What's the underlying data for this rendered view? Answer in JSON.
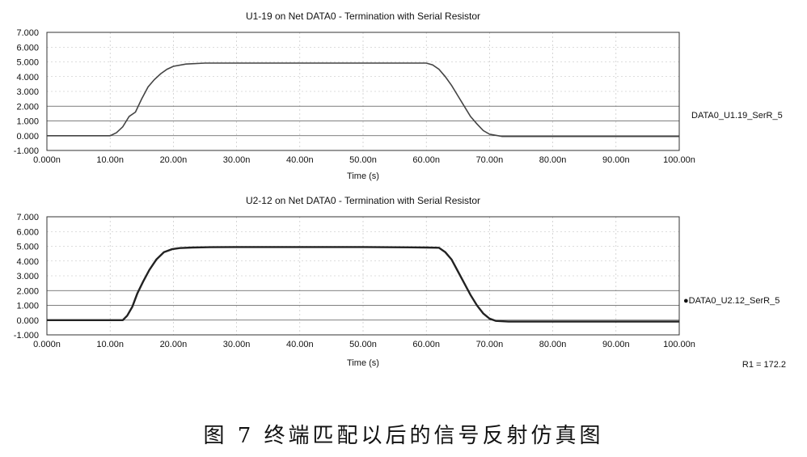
{
  "chart_data": [
    {
      "type": "line",
      "title": "U1-19 on Net DATA0 - Termination with Serial Resistor",
      "xlabel": "Time (s)",
      "ylabel": "",
      "xlim": [
        0,
        100
      ],
      "ylim": [
        -1,
        7
      ],
      "x_ticks": [
        "0.000n",
        "10.00n",
        "20.00n",
        "30.00n",
        "40.00n",
        "50.00n",
        "60.00n",
        "70.00n",
        "80.00n",
        "90.00n",
        "100.00n"
      ],
      "y_ticks": [
        "7.000",
        "6.000",
        "5.000",
        "4.000",
        "3.000",
        "2.000",
        "1.000",
        "0.000",
        "-1.000"
      ],
      "legend_position": "right",
      "grid": true,
      "series": [
        {
          "name": "DATA0_U1.19_SerR_5",
          "x": [
            0,
            10,
            11,
            12,
            13,
            14,
            15,
            16,
            17,
            18,
            19,
            20,
            22,
            25,
            30,
            40,
            50,
            60,
            61,
            62,
            63,
            64,
            65,
            66,
            67,
            68,
            69,
            70,
            72,
            75,
            80,
            90,
            100
          ],
          "y": [
            0,
            0,
            0.2,
            0.6,
            1.3,
            1.6,
            2.5,
            3.3,
            3.8,
            4.2,
            4.5,
            4.7,
            4.85,
            4.92,
            4.92,
            4.92,
            4.92,
            4.92,
            4.8,
            4.5,
            4.0,
            3.4,
            2.7,
            2.0,
            1.3,
            0.8,
            0.35,
            0.1,
            -0.05,
            -0.05,
            -0.05,
            -0.05,
            -0.05
          ]
        }
      ]
    },
    {
      "type": "line",
      "title": "U2-12 on Net DATA0 - Termination with Serial Resistor",
      "xlabel": "Time (s)",
      "ylabel": "",
      "xlim": [
        0,
        100
      ],
      "ylim": [
        -1,
        7
      ],
      "x_ticks": [
        "0.000n",
        "10.00n",
        "20.00n",
        "30.00n",
        "40.00n",
        "50.00n",
        "60.00n",
        "70.00n",
        "80.00n",
        "90.00n",
        "100.00n"
      ],
      "y_ticks": [
        "7.000",
        "6.000",
        "5.000",
        "4.000",
        "3.000",
        "2.000",
        "1.000",
        "0.000",
        "-1.000"
      ],
      "legend_position": "right",
      "grid": true,
      "series": [
        {
          "name": "●DATA0_U2.12_SerR_5",
          "x": [
            0,
            12,
            12.7,
            13.5,
            14.3,
            15.2,
            16.2,
            17.3,
            18.5,
            19.8,
            21,
            23,
            26,
            30,
            40,
            50,
            60,
            62,
            63,
            64,
            65,
            66,
            67,
            68,
            69,
            70,
            71,
            73,
            76,
            80,
            90,
            100
          ],
          "y": [
            0,
            0,
            0.3,
            0.9,
            1.8,
            2.6,
            3.4,
            4.1,
            4.6,
            4.8,
            4.88,
            4.92,
            4.94,
            4.95,
            4.95,
            4.95,
            4.92,
            4.9,
            4.6,
            4.1,
            3.3,
            2.5,
            1.7,
            1.0,
            0.45,
            0.1,
            -0.05,
            -0.1,
            -0.1,
            -0.1,
            -0.1,
            -0.1
          ]
        }
      ]
    }
  ],
  "annotations": {
    "r1": "R1 = 172.2"
  },
  "caption": "图 7   终端匹配以后的信号反射仿真图"
}
